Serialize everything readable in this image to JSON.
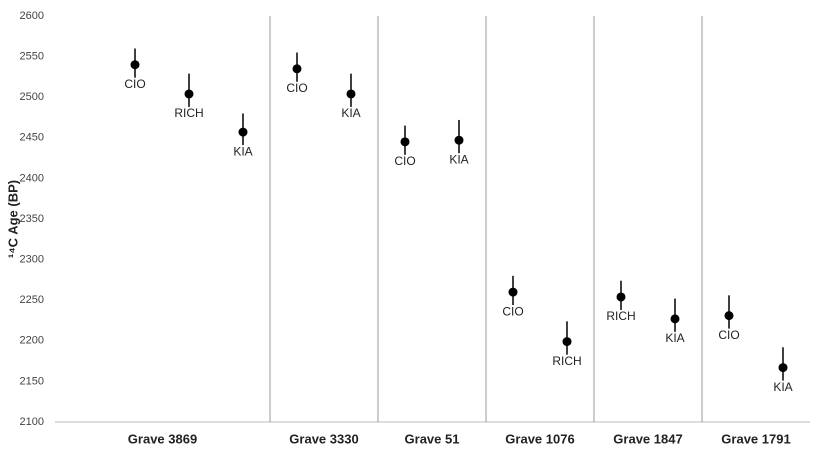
{
  "chart_data": {
    "type": "errorbar",
    "y_label": "¹⁴C Age (BP)",
    "ylim": [
      2100,
      2600
    ],
    "yticks": [
      2100,
      2150,
      2200,
      2250,
      2300,
      2350,
      2400,
      2450,
      2500,
      2550,
      2600
    ],
    "color": "#000000",
    "groups": [
      {
        "name": "Grave 3869",
        "points": [
          {
            "label": "CIO",
            "value": 2540,
            "error": 20
          },
          {
            "label": "RICH",
            "value": 2504,
            "error": 25
          },
          {
            "label": "KIA",
            "value": 2457,
            "error": 23
          }
        ]
      },
      {
        "name": "Grave 3330",
        "points": [
          {
            "label": "CIO",
            "value": 2535,
            "error": 20
          },
          {
            "label": "KIA",
            "value": 2504,
            "error": 25
          }
        ]
      },
      {
        "name": "Grave 51",
        "points": [
          {
            "label": "CIO",
            "value": 2445,
            "error": 20
          },
          {
            "label": "KIA",
            "value": 2447,
            "error": 25
          }
        ]
      },
      {
        "name": "Grave 1076",
        "points": [
          {
            "label": "CIO",
            "value": 2260,
            "error": 20
          },
          {
            "label": "RICH",
            "value": 2199,
            "error": 25
          }
        ]
      },
      {
        "name": "Grave 1847",
        "points": [
          {
            "label": "RICH",
            "value": 2254,
            "error": 20
          },
          {
            "label": "KIA",
            "value": 2227,
            "error": 25
          }
        ]
      },
      {
        "name": "Grave 1791",
        "points": [
          {
            "label": "CIO",
            "value": 2231,
            "error": 25
          },
          {
            "label": "KIA",
            "value": 2167,
            "error": 25
          }
        ]
      }
    ]
  }
}
